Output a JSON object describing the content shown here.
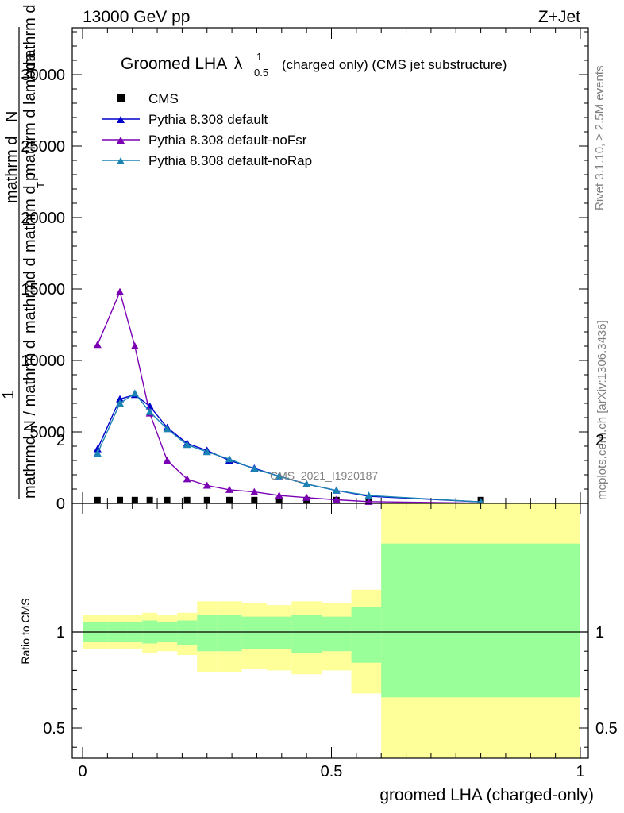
{
  "header": {
    "left": "13000 GeV pp",
    "right": "Z+Jet"
  },
  "side": {
    "rivet": "Rivet 3.1.10, ≥ 2.5M events",
    "mcplots": "mcplots.cern.ch [arXiv:1306.3436]"
  },
  "chart_data": [
    {
      "type": "line",
      "title": {
        "main": "Groomed LHA",
        "lambda": "λ",
        "sup": "1",
        "sub": "0.5",
        "rest": "(charged only) (CMS jet substructure)"
      },
      "watermark": "CMS_2021_I1920187",
      "ylabel": {
        "one": "1",
        "num1": "mathrm d",
        "num2": "N",
        "den_a": "mathrm d p",
        "den_sub": "T",
        "den_b": "mathrm d lambda",
        "lhs": "mathrmd N / mathrm d ",
        "lhs2": "mathrmd d",
        "rhs": "mathrm d"
      },
      "xlim": [
        0,
        1
      ],
      "ylim": [
        0,
        33000
      ],
      "yticks": [
        0,
        5000,
        10000,
        15000,
        20000,
        25000,
        30000
      ],
      "ytick_labels": [
        "0",
        "5000",
        "10000",
        "15000",
        "20000",
        "25000",
        "30000"
      ],
      "legend_position": "top-left",
      "x": [
        0.03,
        0.075,
        0.105,
        0.135,
        0.17,
        0.21,
        0.25,
        0.295,
        0.345,
        0.395,
        0.45,
        0.51,
        0.575,
        0.8
      ],
      "series": [
        {
          "name": "CMS",
          "color": "#000000",
          "marker": "square",
          "values": [
            10,
            10,
            10,
            10,
            10,
            10,
            10,
            10,
            10,
            10,
            10,
            10,
            10,
            10
          ]
        },
        {
          "name": "Pythia 8.308 default",
          "color": "#0000cc",
          "marker": "triangle",
          "values": [
            3800,
            7300,
            7600,
            6800,
            5300,
            4200,
            3700,
            3000,
            2450,
            1900,
            1350,
            900,
            500,
            100
          ]
        },
        {
          "name": "Pythia 8.308 default-noFsr",
          "color": "#7a00b4",
          "marker": "triangle",
          "values": [
            11100,
            14800,
            11000,
            6300,
            3000,
            1700,
            1250,
            950,
            800,
            550,
            400,
            250,
            120,
            20
          ]
        },
        {
          "name": "Pythia 8.308 default-noRap",
          "color": "#1b84b4",
          "marker": "triangle",
          "values": [
            3500,
            7000,
            7700,
            6400,
            5200,
            4100,
            3600,
            3100,
            2400,
            1900,
            1350,
            900,
            550,
            100
          ]
        }
      ]
    },
    {
      "type": "area",
      "ylabel": "Ratio to CMS",
      "xlabel": "groomed LHA (charged-only)",
      "xlim": [
        0,
        1
      ],
      "ylim": [
        0.35,
        2.25
      ],
      "yticks": [
        0.5,
        1,
        2
      ],
      "ytick_labels": [
        "0.5",
        "1",
        "2"
      ],
      "xticks": [
        0,
        0.5,
        1
      ],
      "xtick_labels": [
        "0",
        "0.5",
        "1"
      ],
      "bands": {
        "edges": [
          0,
          0.05,
          0.09,
          0.12,
          0.15,
          0.19,
          0.23,
          0.27,
          0.32,
          0.37,
          0.42,
          0.48,
          0.54,
          0.6,
          1.0
        ],
        "yellow": [
          [
            0.91,
            1.09
          ],
          [
            0.91,
            1.09
          ],
          [
            0.91,
            1.09
          ],
          [
            0.89,
            1.1
          ],
          [
            0.9,
            1.09
          ],
          [
            0.88,
            1.1
          ],
          [
            0.79,
            1.16
          ],
          [
            0.79,
            1.16
          ],
          [
            0.81,
            1.15
          ],
          [
            0.8,
            1.14
          ],
          [
            0.78,
            1.16
          ],
          [
            0.8,
            1.15
          ],
          [
            0.68,
            1.22
          ],
          [
            0.25,
            1.82
          ]
        ],
        "green": [
          [
            0.95,
            1.05
          ],
          [
            0.95,
            1.05
          ],
          [
            0.95,
            1.05
          ],
          [
            0.94,
            1.06
          ],
          [
            0.95,
            1.05
          ],
          [
            0.93,
            1.06
          ],
          [
            0.9,
            1.09
          ],
          [
            0.9,
            1.09
          ],
          [
            0.91,
            1.08
          ],
          [
            0.91,
            1.08
          ],
          [
            0.89,
            1.09
          ],
          [
            0.9,
            1.08
          ],
          [
            0.84,
            1.13
          ],
          [
            0.66,
            1.46
          ]
        ],
        "yellow_color": "#ffff99",
        "green_color": "#99ff99"
      }
    }
  ]
}
